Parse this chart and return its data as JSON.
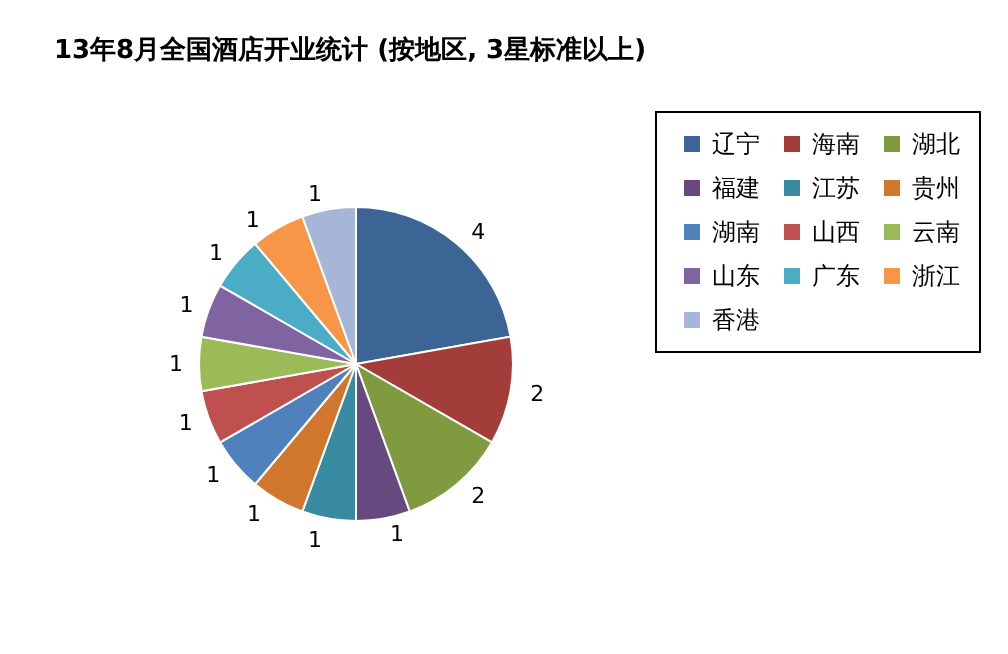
{
  "chart_data": {
    "type": "pie",
    "title": "13年8月全国酒店开业统计 (按地区, 3星标准以上)",
    "categories": [
      "辽宁",
      "海南",
      "湖北",
      "福建",
      "江苏",
      "贵州",
      "湖南",
      "山西",
      "云南",
      "山东",
      "广东",
      "浙江",
      "香港"
    ],
    "values": [
      4,
      2,
      2,
      1,
      1,
      1,
      1,
      1,
      1,
      1,
      1,
      1,
      1
    ],
    "colors": [
      "#3c6596",
      "#a33d3a",
      "#7f9a3f",
      "#65497f",
      "#388ba0",
      "#d1772d",
      "#4f81bd",
      "#c0504d",
      "#9bbb59",
      "#8064a2",
      "#4bacc6",
      "#f79646",
      "#a5b6d6"
    ],
    "data_labels": true,
    "legend": "right"
  }
}
